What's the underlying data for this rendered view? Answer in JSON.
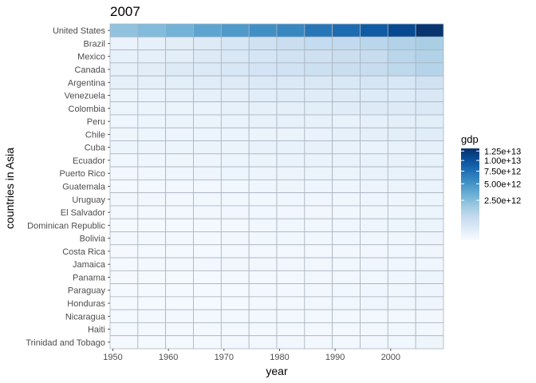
{
  "chart_data": {
    "type": "heatmap",
    "title": "2007",
    "xlabel": "year",
    "ylabel": "countries in Asia",
    "x_years": [
      1952,
      1957,
      1962,
      1967,
      1972,
      1977,
      1982,
      1987,
      1992,
      1997,
      2002,
      2007
    ],
    "x_ticks": [
      "1950",
      "1960",
      "1970",
      "1980",
      "1990",
      "2000"
    ],
    "x_tick_values": [
      1950,
      1960,
      1970,
      1980,
      1990,
      2000
    ],
    "x_range": [
      1949.5,
      2009.5
    ],
    "countries": [
      "United States",
      "Brazil",
      "Mexico",
      "Canada",
      "Argentina",
      "Venezuela",
      "Colombia",
      "Peru",
      "Chile",
      "Cuba",
      "Ecuador",
      "Puerto Rico",
      "Guatemala",
      "Uruguay",
      "El Salvador",
      "Dominican Republic",
      "Bolivia",
      "Costa Rica",
      "Jamaica",
      "Panama",
      "Paraguay",
      "Honduras",
      "Nicaragua",
      "Haiti",
      "Trinidad and Tobago"
    ],
    "values": [
      [
        2200000000000.0,
        2600000000000.0,
        3100000000000.0,
        3900000000000.0,
        4600000000000.0,
        5300000000000.0,
        5900000000000.0,
        7000000000000.0,
        7900000000000.0,
        9200000000000.0,
        10800000000000.0,
        12900000000000.0
      ],
      [
        60000000000.0,
        95000000000.0,
        150000000000.0,
        200000000000.0,
        340000000000.0,
        530000000000.0,
        690000000000.0,
        850000000000.0,
        900000000000.0,
        1100000000000.0,
        1300000000000.0,
        1500000000000.0
      ],
      [
        80000000000.0,
        110000000000.0,
        140000000000.0,
        210000000000.0,
        290000000000.0,
        380000000000.0,
        500000000000.0,
        570000000000.0,
        700000000000.0,
        800000000000.0,
        1100000000000.0,
        1300000000000.0
      ],
      [
        100000000000.0,
        150000000000.0,
        200000000000.0,
        250000000000.0,
        320000000000.0,
        420000000000.0,
        500000000000.0,
        600000000000.0,
        700000000000.0,
        800000000000.0,
        1000000000000.0,
        1200000000000.0
      ],
      [
        100000000000.0,
        120000000000.0,
        140000000000.0,
        170000000000.0,
        200000000000.0,
        260000000000.0,
        260000000000.0,
        280000000000.0,
        300000000000.0,
        380000000000.0,
        330000000000.0,
        490000000000.0
      ],
      [
        50000000000.0,
        60000000000.0,
        75000000000.0,
        95000000000.0,
        110000000000.0,
        160000000000.0,
        170000000000.0,
        170000000000.0,
        200000000000.0,
        230000000000.0,
        230000000000.0,
        290000000000.0
      ],
      [
        30000000000.0,
        40000000000.0,
        50000000000.0,
        60000000000.0,
        80000000000.0,
        100000000000.0,
        120000000000.0,
        140000000000.0,
        170000000000.0,
        200000000000.0,
        210000000000.0,
        270000000000.0
      ],
      [
        20000000000.0,
        30000000000.0,
        40000000000.0,
        50000000000.0,
        60000000000.0,
        75000000000.0,
        85000000000.0,
        85000000000.0,
        70000000000.0,
        95000000000.0,
        110000000000.0,
        140000000000.0
      ],
      [
        24000000000.0,
        30000000000.0,
        35000000000.0,
        40000000000.0,
        45000000000.0,
        45000000000.0,
        50000000000.0,
        60000000000.0,
        80000000000.0,
        110000000000.0,
        140000000000.0,
        170000000000.0
      ],
      [
        30000000000.0,
        35000000000.0,
        33000000000.0,
        43000000000.0,
        45000000000.0,
        64000000000.0,
        70000000000.0,
        76000000000.0,
        66000000000.0,
        57000000000.0,
        65000000000.0,
        95000000000.0
      ],
      [
        15000000000.0,
        17000000000.0,
        21000000000.0,
        26000000000.0,
        32000000000.0,
        45000000000.0,
        55000000000.0,
        56000000000.0,
        65000000000.0,
        72000000000.0,
        73000000000.0,
        81000000000.0
      ],
      [
        10000000000.0,
        14000000000.0,
        19000000000.0,
        27000000000.0,
        33000000000.0,
        35000000000.0,
        36000000000.0,
        42000000000.0,
        50000000000.0,
        61000000000.0,
        70000000000.0,
        79000000000.0
      ],
      [
        7000000000.0,
        8500000000.0,
        10000000000.0,
        13000000000.0,
        16000000000.0,
        20000000000.0,
        24000000000.0,
        25000000000.0,
        29000000000.0,
        35000000000.0,
        43000000000.0,
        60000000000.0
      ],
      [
        11000000000.0,
        13000000000.0,
        13000000000.0,
        14000000000.0,
        14000000000.0,
        16000000000.0,
        19000000000.0,
        19000000000.0,
        23000000000.0,
        28000000000.0,
        25000000000.0,
        37000000000.0
      ],
      [
        7000000000.0,
        8000000000.0,
        9500000000.0,
        11000000000.0,
        13000000000.0,
        15000000000.0,
        13000000000.0,
        13000000000.0,
        15000000000.0,
        21000000000.0,
        26000000000.0,
        33000000000.0
      ],
      [
        3000000000.0,
        4000000000.0,
        4500000000.0,
        5500000000.0,
        8000000000.0,
        11000000000.0,
        14000000000.0,
        16000000000.0,
        19000000000.0,
        26000000000.0,
        37000000000.0,
        46000000000.0
      ],
      [
        7000000000.0,
        7000000000.0,
        7500000000.0,
        9000000000.0,
        12000000000.0,
        15000000000.0,
        15000000000.0,
        14000000000.0,
        17000000000.0,
        21000000000.0,
        23000000000.0,
        36000000000.0
      ],
      [
        2000000000.0,
        2500000000.0,
        3500000000.0,
        4500000000.0,
        6000000000.0,
        7500000000.0,
        7800000000.0,
        9000000000.0,
        11000000000.0,
        13000000000.0,
        16000000000.0,
        21000000000.0
      ],
      [
        4000000000.0,
        6000000000.0,
        7500000000.0,
        10000000000.0,
        13000000000.0,
        12000000000.0,
        11000000000.0,
        11000000000.0,
        16000000000.0,
        18000000000.0,
        19000000000.0,
        20000000000.0
      ],
      [
        2000000000.0,
        2700000000.0,
        3400000000.0,
        4700000000.0,
        6400000000.0,
        7100000000.0,
        9400000000.0,
        10000000000.0,
        10000000000.0,
        16000000000.0,
        20000000000.0,
        32000000000.0
      ],
      [
        3000000000.0,
        3400000000.0,
        3600000000.0,
        4400000000.0,
        5000000000.0,
        7500000000.0,
        9800000000.0,
        10000000000.0,
        16000000000.0,
        19000000000.0,
        22000000000.0,
        28000000000.0
      ],
      [
        3000000000.0,
        3400000000.0,
        3600000000.0,
        4400000000.0,
        5000000000.0,
        7500000000.0,
        9800000000.0,
        10000000000.0,
        16000000000.0,
        19000000000.0,
        22000000000.0,
        28000000000.0
      ],
      [
        4300000000.0,
        5500000000.0,
        6000000000.0,
        7000000000.0,
        7900000000.0,
        9000000000.0,
        8500000000.0,
        8000000000.0,
        8500000000.0,
        8800000000.0,
        9300000000.0,
        13000000000.0
      ],
      [
        5200000000.0,
        5600000000.0,
        5500000000.0,
        6800000000.0,
        7300000000.0,
        8400000000.0,
        9500000000.0,
        9000000000.0,
        8000000000.0,
        10000000000.0,
        14000000000.0,
        15000000000.0
      ],
      [
        2400000000.0,
        3000000000.0,
        3800000000.0,
        5000000000.0,
        6900000000.0,
        9300000000.0,
        11000000000.0,
        9000000000.0,
        8900000000.0,
        11000000000.0,
        14000000000.0,
        24000000000.0
      ]
    ],
    "legend_title": "gdp",
    "legend_ticks": [
      "1.25e+13",
      "1.00e+13",
      "7.50e+12",
      "5.00e+12",
      "2.50e+12"
    ],
    "legend_tick_values": [
      12500000000000.0,
      10000000000000.0,
      7500000000000.0,
      5000000000000.0,
      2500000000000.0
    ],
    "legend_position": "right",
    "color_scale": "sqrt",
    "color_low": "#f7fbff",
    "color_high": "#08306b",
    "palette": [
      "#f7fbff",
      "#deebf7",
      "#c6dbef",
      "#9ecae1",
      "#6baed6",
      "#4292c6",
      "#2171b5",
      "#08519c",
      "#08306b"
    ],
    "grid": "on",
    "tile_border_color": "#a9b3bf"
  }
}
